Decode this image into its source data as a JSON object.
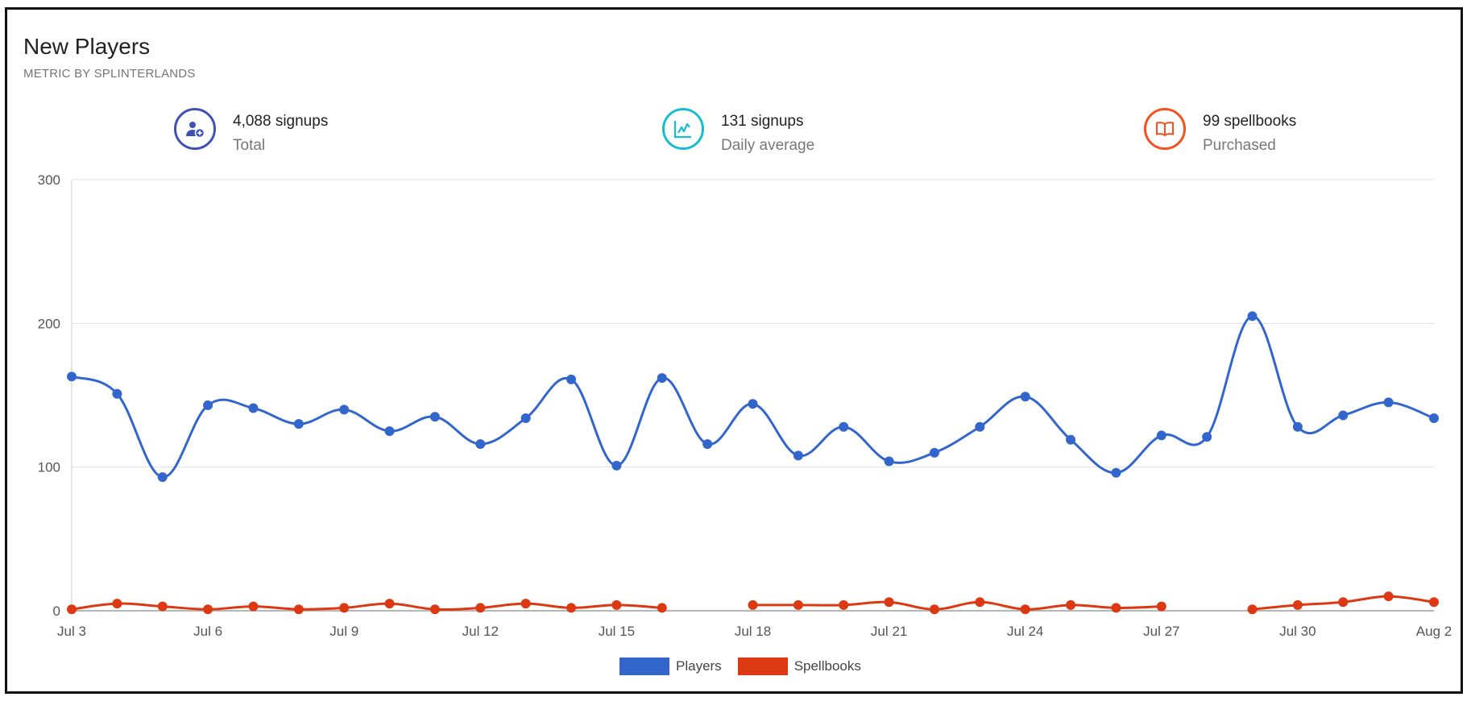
{
  "header": {
    "title": "New Players",
    "subtitle": "METRIC BY SPLINTERLANDS"
  },
  "stats": [
    {
      "value": "4,088 signups",
      "label": "Total",
      "icon": "add-user-icon",
      "color": "#3f51b5"
    },
    {
      "value": "131 signups",
      "label": "Daily average",
      "icon": "line-chart-icon",
      "color": "#18bcd4"
    },
    {
      "value": "99 spellbooks",
      "label": "Purchased",
      "icon": "open-book-icon",
      "color": "#f4511e"
    }
  ],
  "chart_data": {
    "type": "line",
    "x": [
      "Jul 3",
      "Jul 4",
      "Jul 5",
      "Jul 6",
      "Jul 7",
      "Jul 8",
      "Jul 9",
      "Jul 10",
      "Jul 11",
      "Jul 12",
      "Jul 13",
      "Jul 14",
      "Jul 15",
      "Jul 16",
      "Jul 17",
      "Jul 18",
      "Jul 19",
      "Jul 20",
      "Jul 21",
      "Jul 22",
      "Jul 23",
      "Jul 24",
      "Jul 25",
      "Jul 26",
      "Jul 27",
      "Jul 28",
      "Jul 29",
      "Jul 30",
      "Jul 31",
      "Aug 1",
      "Aug 2"
    ],
    "x_tick_labels": [
      "Jul 3",
      "Jul 6",
      "Jul 9",
      "Jul 12",
      "Jul 15",
      "Jul 18",
      "Jul 21",
      "Jul 24",
      "Jul 27",
      "Jul 30",
      "Aug 2"
    ],
    "y_ticks": [
      "0",
      "100",
      "200",
      "300"
    ],
    "ylim": [
      0,
      300
    ],
    "grid": true,
    "legend_position": "bottom-center",
    "series": [
      {
        "name": "Players",
        "color": "#3366cc",
        "values": [
          163,
          151,
          93,
          143,
          141,
          130,
          140,
          125,
          135,
          116,
          134,
          161,
          101,
          162,
          116,
          144,
          108,
          128,
          104,
          110,
          128,
          149,
          119,
          96,
          122,
          121,
          205,
          128,
          136,
          145,
          134
        ]
      },
      {
        "name": "Spellbooks",
        "color": "#dc3912",
        "values": [
          1,
          5,
          3,
          1,
          3,
          1,
          2,
          5,
          1,
          2,
          5,
          2,
          4,
          2,
          null,
          4,
          4,
          4,
          6,
          1,
          6,
          1,
          4,
          2,
          3,
          null,
          1,
          4,
          6,
          10,
          6
        ]
      }
    ]
  }
}
